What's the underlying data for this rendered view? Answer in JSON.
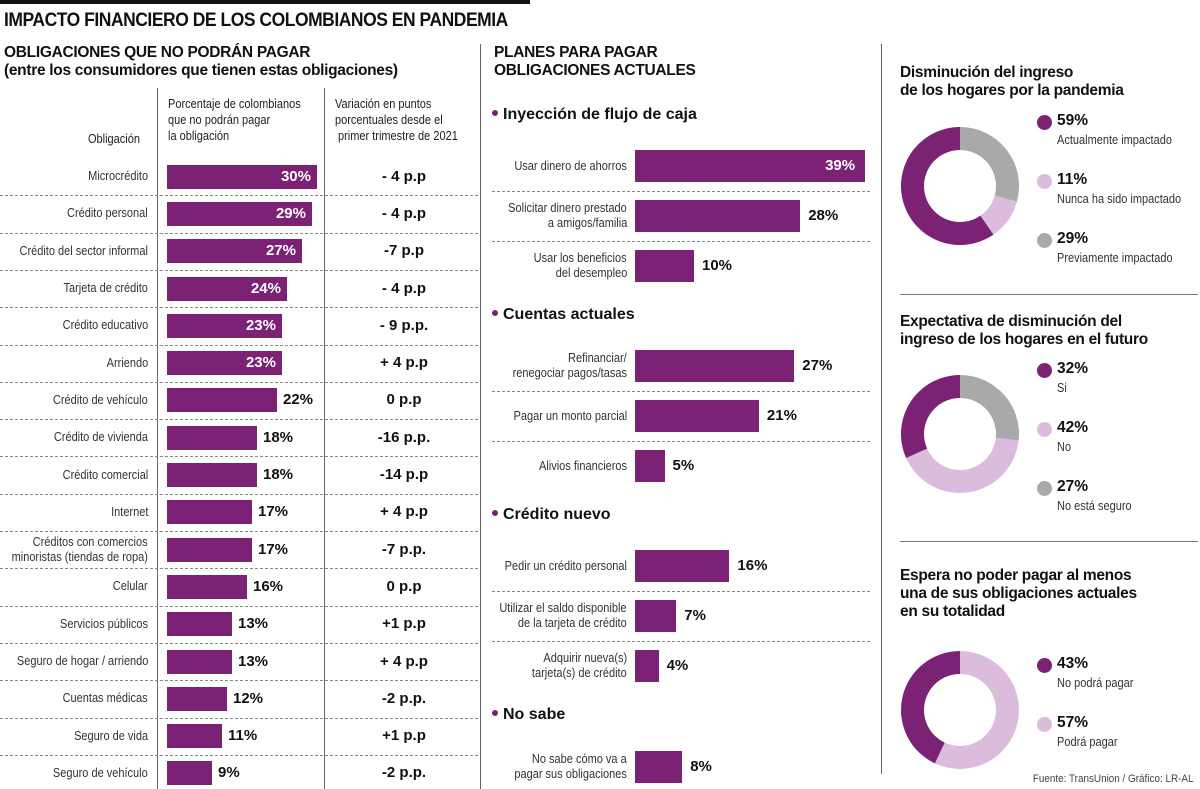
{
  "header": {
    "title": "IMPACTO FINANCIERO DE LOS COLOMBIANOS EN PANDEMIA"
  },
  "colors": {
    "purple": "#7b2275",
    "light_purple": "#dcbcdc",
    "gray": "#a9a9ab"
  },
  "chart_data": [
    {
      "type": "bar",
      "title": "OBLIGACIONES QUE NO PODRÁN PAGAR",
      "subtitle": "(entre los consumidores que tienen estas obligaciones)",
      "col_headers": {
        "obligation": "Obligación",
        "percent": "Porcentaje de colombianos que no podrán pagar la obligación",
        "percent_lines": [
          "Porcentaje de colombianos",
          "que no podrán pagar",
          "la obligación"
        ],
        "variation_lines": [
          "Variación en puntos",
          "porcentuales desde el",
          "primer trimestre de 2021"
        ]
      },
      "categories": [
        "Microcrédito",
        "Crédito personal",
        "Crédito del sector informal",
        "Tarjeta de crédito",
        "Crédito educativo",
        "Arriendo",
        "Crédito de vehículo",
        "Crédito de vivienda",
        "Crédito comercial",
        "Internet",
        "Créditos con comercios minoristas (tiendas de ropa)",
        "Celular",
        "Servicios públicos",
        "Seguro de hogar / arriendo",
        "Cuentas médicas",
        "Seguro de vida",
        "Seguro de vehículo"
      ],
      "category_lines": [
        [
          "Microcrédito"
        ],
        [
          "Crédito personal"
        ],
        [
          "Crédito del sector informal"
        ],
        [
          "Tarjeta de crédito"
        ],
        [
          "Crédito educativo"
        ],
        [
          "Arriendo"
        ],
        [
          "Crédito de vehículo"
        ],
        [
          "Crédito de vivienda"
        ],
        [
          "Crédito comercial"
        ],
        [
          "Internet"
        ],
        [
          "Créditos con comercios",
          "minoristas (tiendas de ropa)"
        ],
        [
          "Celular"
        ],
        [
          "Servicios públicos"
        ],
        [
          "Seguro de hogar / arriendo"
        ],
        [
          "Cuentas médicas"
        ],
        [
          "Seguro de vida"
        ],
        [
          "Seguro de vehículo"
        ]
      ],
      "values": [
        30,
        29,
        27,
        24,
        23,
        23,
        22,
        18,
        18,
        17,
        17,
        16,
        13,
        13,
        12,
        11,
        9
      ],
      "value_labels": [
        "30%",
        "29%",
        "27%",
        "24%",
        "23%",
        "23%",
        "22%",
        "18%",
        "18%",
        "17%",
        "17%",
        "16%",
        "13%",
        "13%",
        "12%",
        "11%",
        "9%"
      ],
      "variation": [
        "- 4 p.p",
        "- 4 p.p",
        "-7 p.p",
        "- 4 p.p",
        "- 9 p.p.",
        "+ 4 p.p",
        "0 p.p",
        "-16 p.p.",
        "-14 p.p",
        "+ 4 p.p",
        "-7 p.p.",
        "0 p.p",
        "+1 p.p",
        "+ 4 p.p",
        "-2 p.p.",
        "+1 p.p",
        "-2 p.p."
      ],
      "xlabel": "",
      "ylabel": "",
      "unit": "%"
    },
    {
      "type": "bar",
      "title": "PLANES PARA PAGAR OBLIGACIONES ACTUALES",
      "title_lines": [
        "PLANES PARA PAGAR",
        "OBLIGACIONES ACTUALES"
      ],
      "groups": [
        {
          "name": "Inyección de flujo de caja",
          "items": [
            {
              "label_lines": [
                "Usar dinero de ahorros"
              ],
              "value": 39,
              "value_label": "39%"
            },
            {
              "label_lines": [
                "Solicitar dinero prestado",
                "a amigos/familia"
              ],
              "value": 28,
              "value_label": "28%"
            },
            {
              "label_lines": [
                "Usar los beneficios",
                "del desempleo"
              ],
              "value": 10,
              "value_label": "10%"
            }
          ]
        },
        {
          "name": "Cuentas actuales",
          "items": [
            {
              "label_lines": [
                "Refinanciar/",
                "renegociar pagos/tasas"
              ],
              "value": 27,
              "value_label": "27%"
            },
            {
              "label_lines": [
                "Pagar un monto parcial"
              ],
              "value": 21,
              "value_label": "21%"
            },
            {
              "label_lines": [
                "Alivios financieros"
              ],
              "value": 5,
              "value_label": "5%"
            }
          ]
        },
        {
          "name": "Crédito nuevo",
          "items": [
            {
              "label_lines": [
                "Pedir un crédito personal"
              ],
              "value": 16,
              "value_label": "16%"
            },
            {
              "label_lines": [
                "Utilizar el saldo disponible",
                "de la tarjeta de crédito"
              ],
              "value": 7,
              "value_label": "7%"
            },
            {
              "label_lines": [
                "Adquirir nueva(s)",
                "tarjeta(s) de crédito"
              ],
              "value": 4,
              "value_label": "4%"
            }
          ]
        },
        {
          "name": "No sabe",
          "items": [
            {
              "label_lines": [
                "No sabe cómo va a",
                "pagar sus obligaciones"
              ],
              "value": 8,
              "value_label": "8%"
            }
          ]
        }
      ],
      "unit": "%"
    },
    {
      "type": "pie",
      "donut": true,
      "title_lines": [
        "Disminución del ingreso",
        "de los hogares por la pandemia"
      ],
      "slices": [
        {
          "label": "Actualmente impactado",
          "value": 59,
          "value_label": "59%",
          "color": "#7b2275"
        },
        {
          "label": "Nunca ha sido impactado",
          "value": 11,
          "value_label": "11%",
          "color": "#dcbcdc"
        },
        {
          "label": "Previamente impactado",
          "value": 29,
          "value_label": "29%",
          "color": "#a9a9ab"
        }
      ],
      "draw_order": [
        2,
        1,
        0
      ]
    },
    {
      "type": "pie",
      "donut": true,
      "title_lines": [
        "Expectativa de disminución del",
        "ingreso de los hogares en el futuro"
      ],
      "slices": [
        {
          "label": "Si",
          "value": 32,
          "value_label": "32%",
          "color": "#7b2275"
        },
        {
          "label": "No",
          "value": 42,
          "value_label": "42%",
          "color": "#dcbcdc"
        },
        {
          "label": "No está seguro",
          "value": 27,
          "value_label": "27%",
          "color": "#a9a9ab"
        }
      ],
      "draw_order": [
        2,
        1,
        0
      ]
    },
    {
      "type": "pie",
      "donut": true,
      "title_lines": [
        "Espera no poder pagar al menos",
        "una de sus obligaciones actuales",
        "en su totalidad"
      ],
      "slices": [
        {
          "label": "No podrá pagar",
          "value": 43,
          "value_label": "43%",
          "color": "#7b2275"
        },
        {
          "label": "Podrá pagar",
          "value": 57,
          "value_label": "57%",
          "color": "#dcbcdc"
        }
      ],
      "draw_order": [
        1,
        0
      ]
    }
  ],
  "footer": {
    "source": "Fuente: TransUnion / Gráfico: LR-AL"
  }
}
